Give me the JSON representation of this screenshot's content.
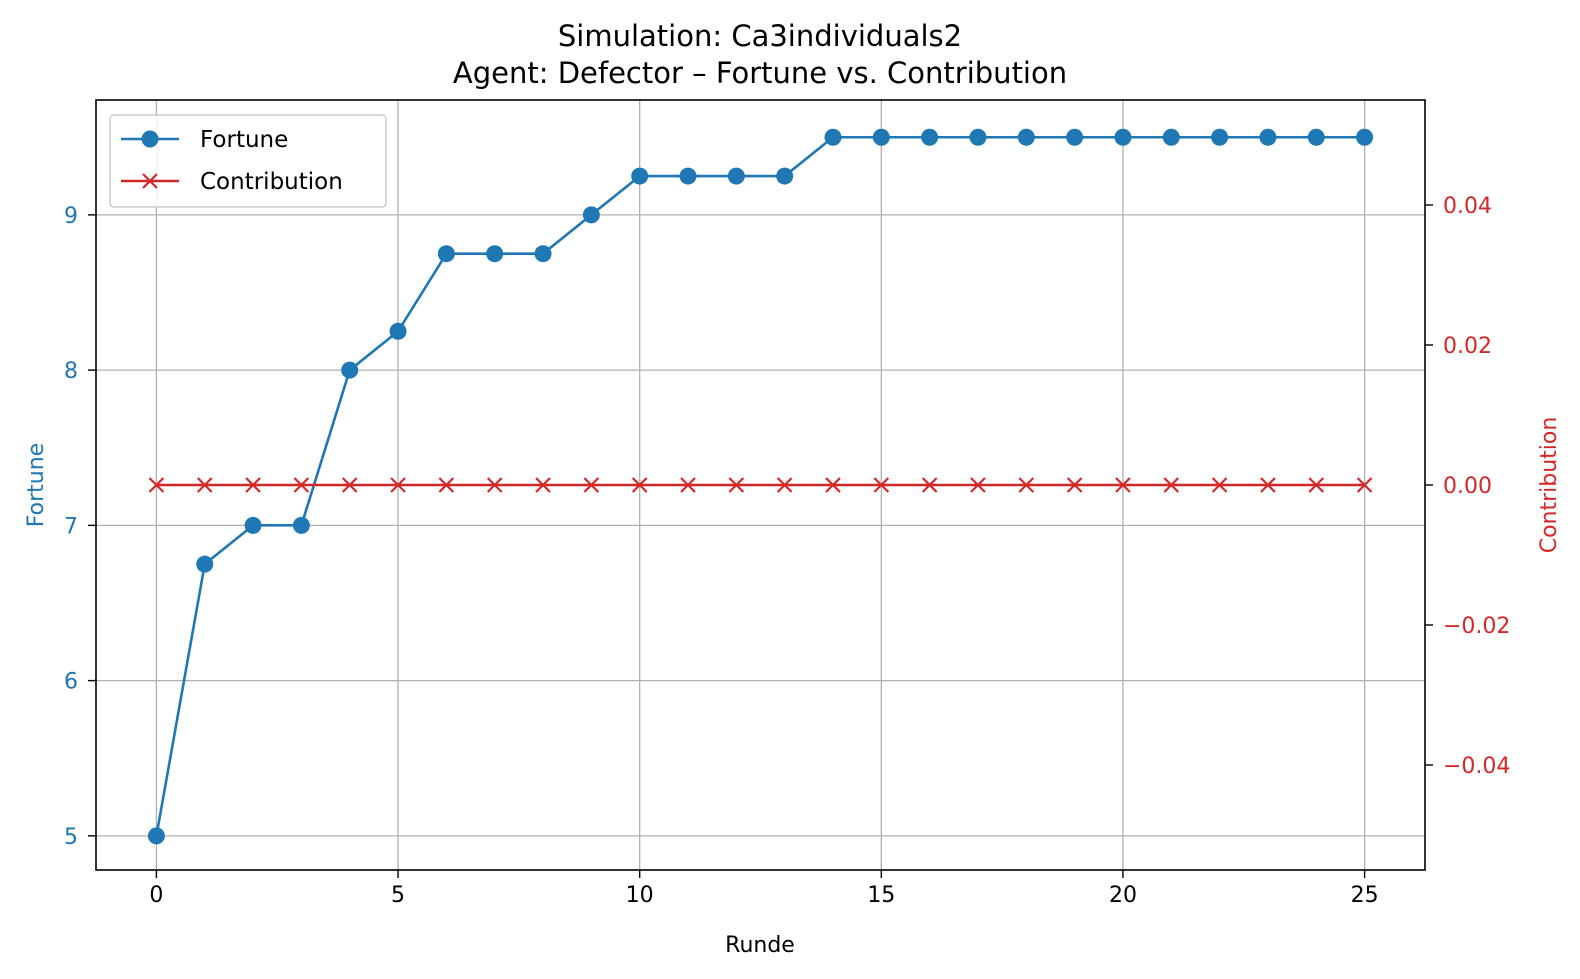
{
  "chart_data": {
    "type": "line",
    "title": "Simulation: Ca3individuals2",
    "subtitle": "Agent: Defector – Fortune vs. Contribution",
    "xlabel": "Runde",
    "ylabel": "Fortune",
    "y2label": "Contribution",
    "x": [
      0,
      1,
      2,
      3,
      4,
      5,
      6,
      7,
      8,
      9,
      10,
      11,
      12,
      13,
      14,
      15,
      16,
      17,
      18,
      19,
      20,
      21,
      22,
      23,
      24,
      25
    ],
    "xlim": [
      -1.25,
      26.25
    ],
    "ylim": [
      4.78,
      9.74
    ],
    "y2lim": [
      -0.055,
      0.055
    ],
    "xticks": [
      0,
      5,
      10,
      15,
      20,
      25
    ],
    "yticks": [
      5,
      6,
      7,
      8,
      9
    ],
    "y2ticks": [
      -0.04,
      -0.02,
      0.0,
      0.02,
      0.04
    ],
    "y2tick_labels": [
      "−0.04",
      "−0.02",
      "0.00",
      "0.02",
      "0.04"
    ],
    "grid": true,
    "legend_position": "top-left",
    "series": [
      {
        "name": "Fortune",
        "axis": "left",
        "marker": "circle",
        "color": "#1f77b4",
        "values": [
          5.0,
          6.75,
          7.0,
          7.0,
          8.0,
          8.25,
          8.75,
          8.75,
          8.75,
          9.0,
          9.25,
          9.25,
          9.25,
          9.25,
          9.5,
          9.5,
          9.5,
          9.5,
          9.5,
          9.5,
          9.5,
          9.5,
          9.5,
          9.5,
          9.5,
          9.5
        ]
      },
      {
        "name": "Contribution",
        "axis": "right",
        "marker": "x",
        "color": "#d62728",
        "values": [
          0,
          0,
          0,
          0,
          0,
          0,
          0,
          0,
          0,
          0,
          0,
          0,
          0,
          0,
          0,
          0,
          0,
          0,
          0,
          0,
          0,
          0,
          0,
          0,
          0,
          0
        ]
      }
    ]
  }
}
